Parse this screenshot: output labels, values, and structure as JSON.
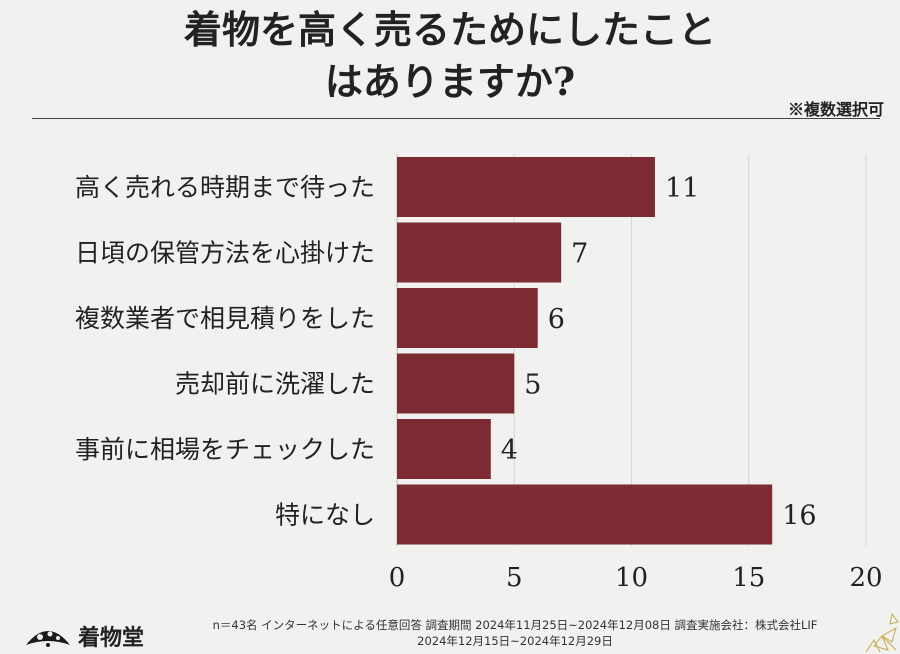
{
  "title": {
    "line1": "着物を高く売るためにしたこと",
    "line2": "はありますか?"
  },
  "note": "※複数選択可",
  "chart_data": {
    "type": "bar",
    "orientation": "horizontal",
    "categories": [
      "高く売れる時期まで待った",
      "日頃の保管方法を心掛けた",
      "複数業者で相見積りをした",
      "売却前に洗濯した",
      "事前に相場をチェックした",
      "特になし"
    ],
    "values": [
      11,
      7,
      6,
      5,
      4,
      16
    ],
    "xlim": [
      0,
      20
    ],
    "xticks": [
      0,
      5,
      10,
      15,
      20
    ],
    "bar_color": "#7b2b31",
    "grid": true
  },
  "footer": {
    "brand": "着物堂",
    "line1": "n＝43名 インターネットによる任意回答 調査期間 2024年11月25日~2024年12月08日  調査実施会社：株式会社LIF",
    "line2": "2024年12月15日~2024年12月29日"
  }
}
